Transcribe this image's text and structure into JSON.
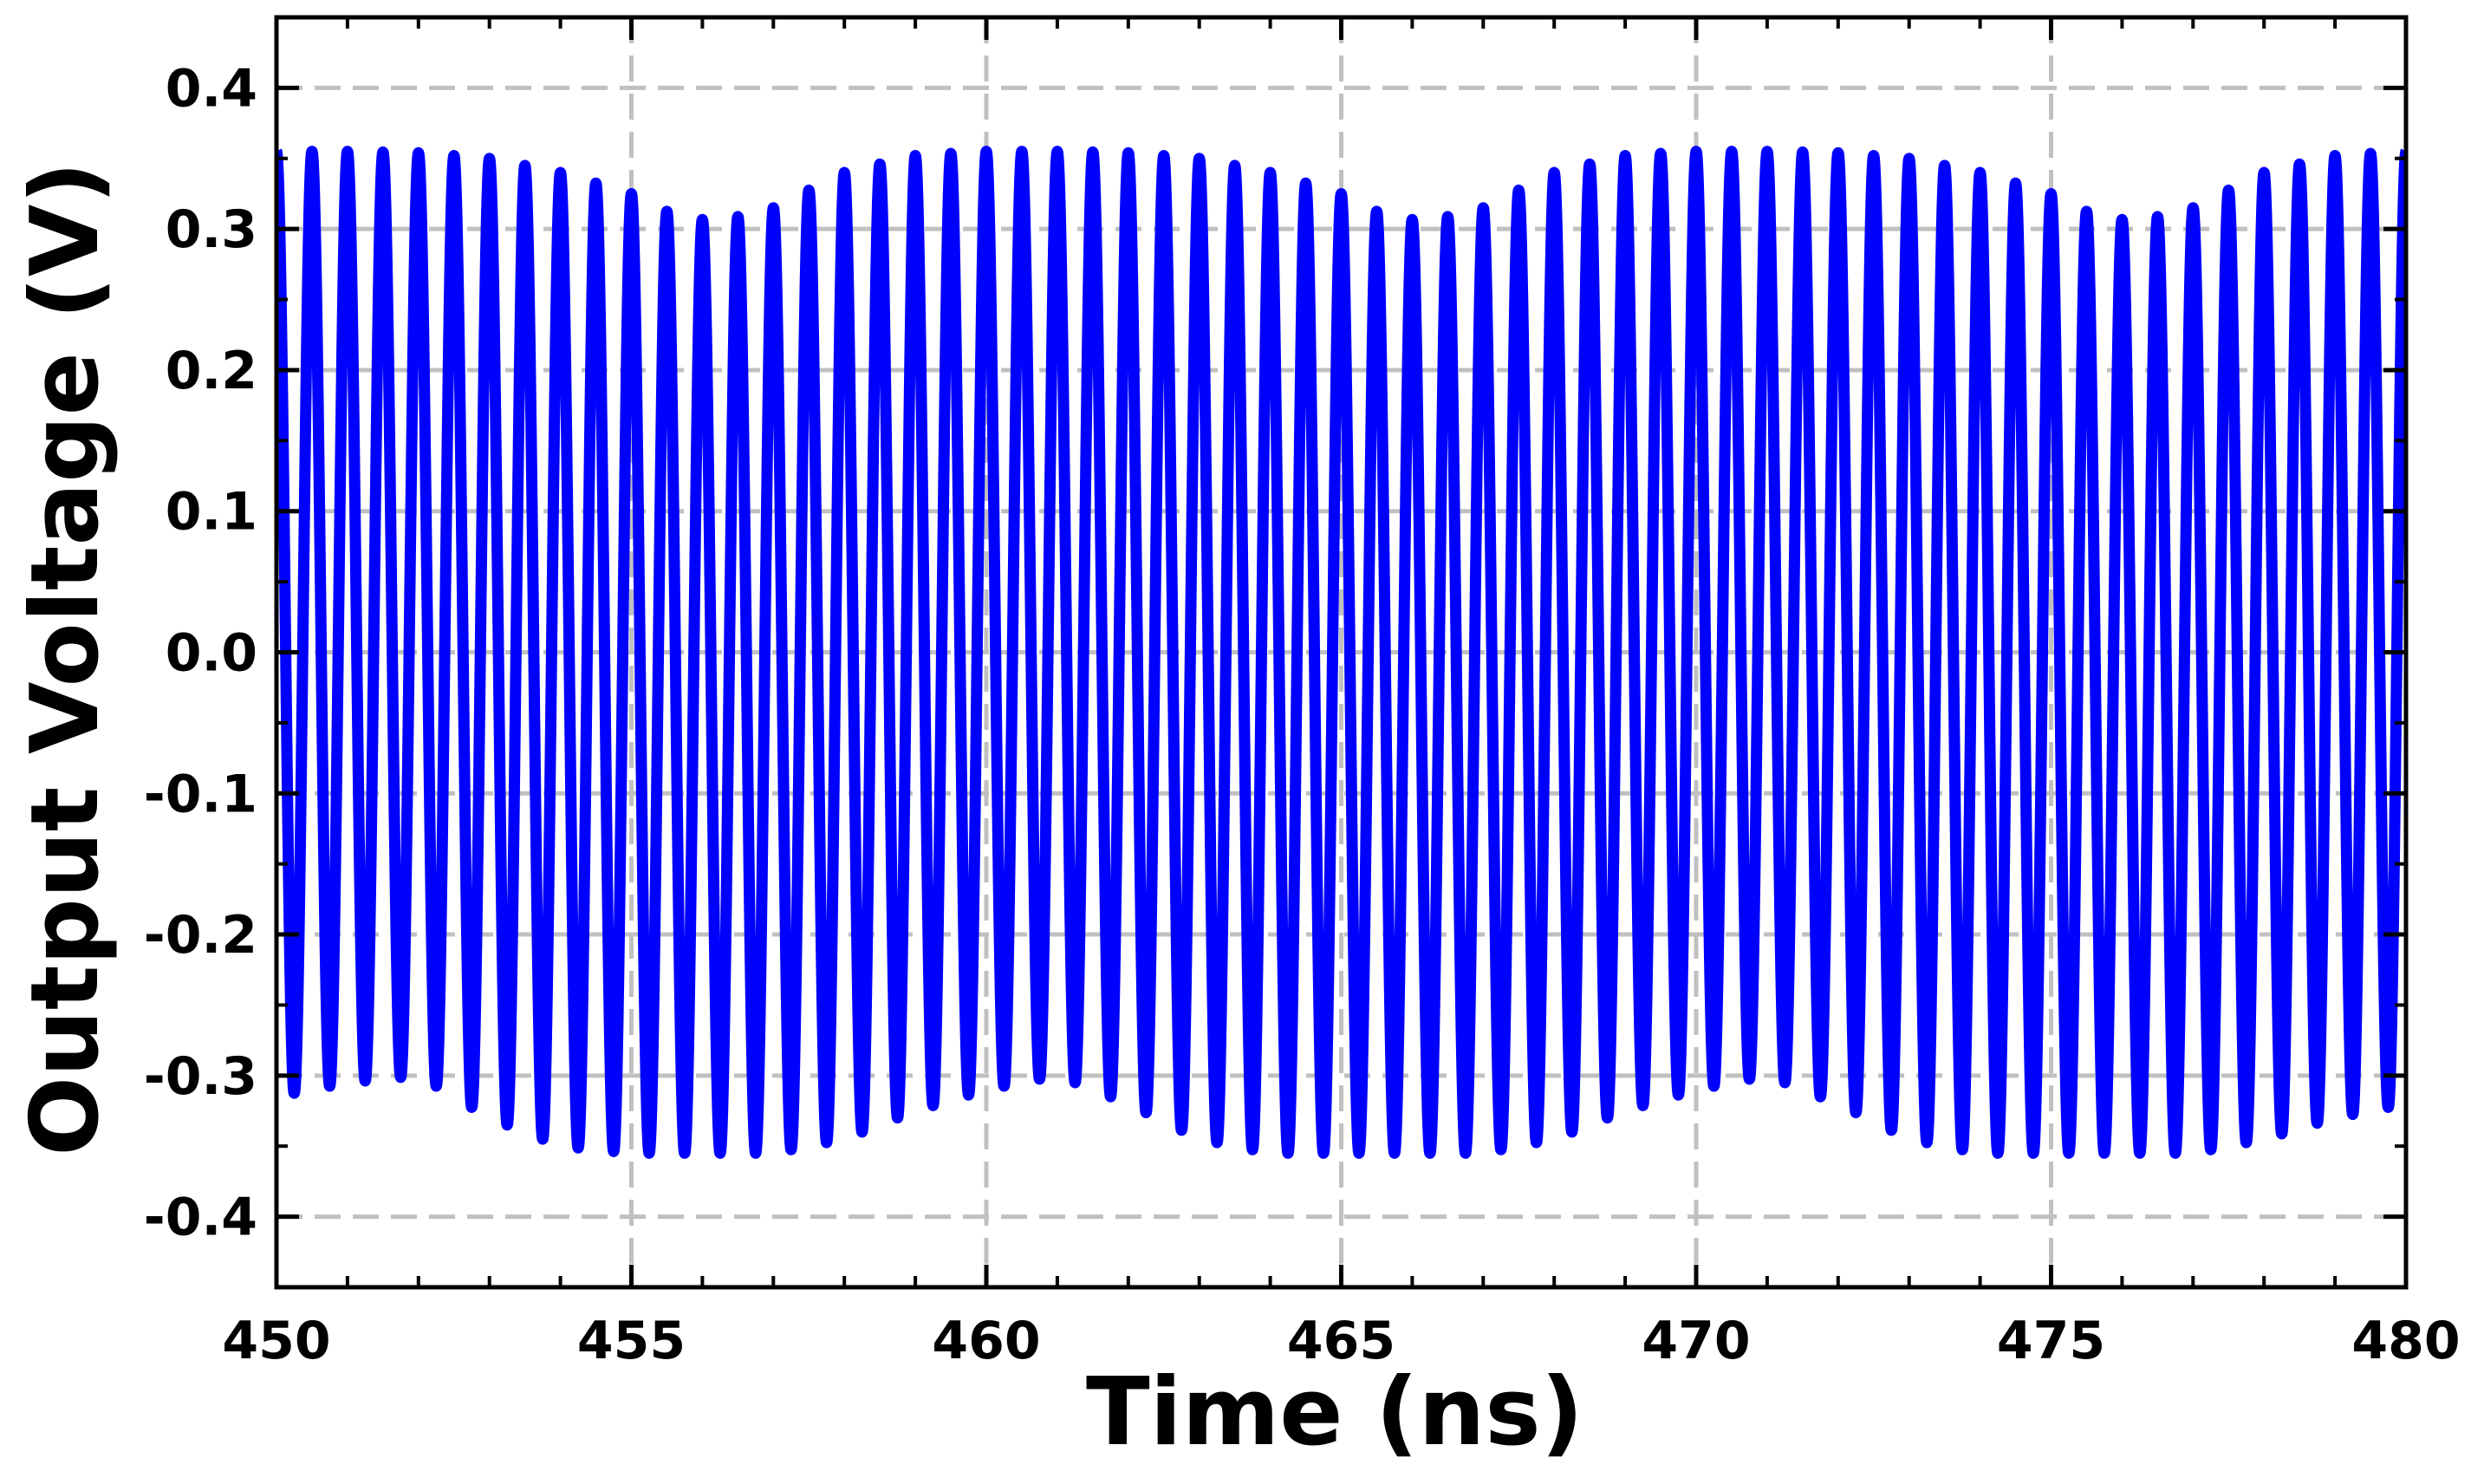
{
  "chart_data": {
    "type": "line",
    "title": "",
    "xlabel": "Time (ns)",
    "ylabel": "Output Voltage (V)",
    "xlim": [
      450,
      480
    ],
    "ylim": [
      -0.45,
      0.45
    ],
    "x_ticks": [
      450,
      455,
      460,
      465,
      470,
      475,
      480
    ],
    "x_tick_labels": [
      "450",
      "455",
      "460",
      "465",
      "470",
      "475",
      "480"
    ],
    "y_ticks": [
      -0.4,
      -0.3,
      -0.2,
      -0.1,
      0.0,
      0.1,
      0.2,
      0.3,
      0.4
    ],
    "y_tick_labels": [
      "-0.4",
      "-0.3",
      "-0.2",
      "-0.1",
      "0.0",
      "0.1",
      "0.2",
      "0.3",
      "0.4"
    ],
    "grid": true,
    "grid_style": "dashed",
    "legend": "none",
    "series": [
      {
        "color": "#0000ff",
        "x_start": 450,
        "x_end": 480,
        "carrier_period": 0.5,
        "envelope_period": 10,
        "upper_envelope": {
          "x": [
            450,
            451,
            452,
            453,
            454,
            455,
            455.6,
            456.2,
            457,
            458,
            459,
            460,
            461,
            462,
            463,
            464,
            465,
            465.6,
            466.2,
            467,
            468,
            469,
            470,
            471,
            472,
            473,
            474,
            475,
            475.6,
            476.2,
            477,
            478,
            479,
            480
          ],
          "y": [
            0.355,
            0.355,
            0.354,
            0.35,
            0.34,
            0.325,
            0.31,
            0.305,
            0.315,
            0.34,
            0.352,
            0.355,
            0.355,
            0.354,
            0.35,
            0.34,
            0.325,
            0.31,
            0.305,
            0.315,
            0.34,
            0.352,
            0.355,
            0.355,
            0.354,
            0.35,
            0.34,
            0.325,
            0.31,
            0.305,
            0.315,
            0.34,
            0.352,
            0.355
          ]
        },
        "lower_envelope": {
          "x": [
            450,
            451,
            452,
            453,
            454,
            455,
            456,
            457,
            458,
            459,
            460,
            461,
            462,
            463,
            464,
            465,
            466,
            467,
            468,
            469,
            470,
            471,
            472,
            473,
            474,
            475,
            476,
            477,
            478,
            479,
            480
          ],
          "y": [
            -0.315,
            -0.305,
            -0.3,
            -0.33,
            -0.35,
            -0.355,
            -0.355,
            -0.355,
            -0.345,
            -0.325,
            -0.31,
            -0.3,
            -0.32,
            -0.345,
            -0.355,
            -0.355,
            -0.355,
            -0.355,
            -0.345,
            -0.325,
            -0.31,
            -0.3,
            -0.32,
            -0.345,
            -0.355,
            -0.355,
            -0.355,
            -0.355,
            -0.345,
            -0.33,
            -0.32
          ]
        }
      }
    ]
  }
}
